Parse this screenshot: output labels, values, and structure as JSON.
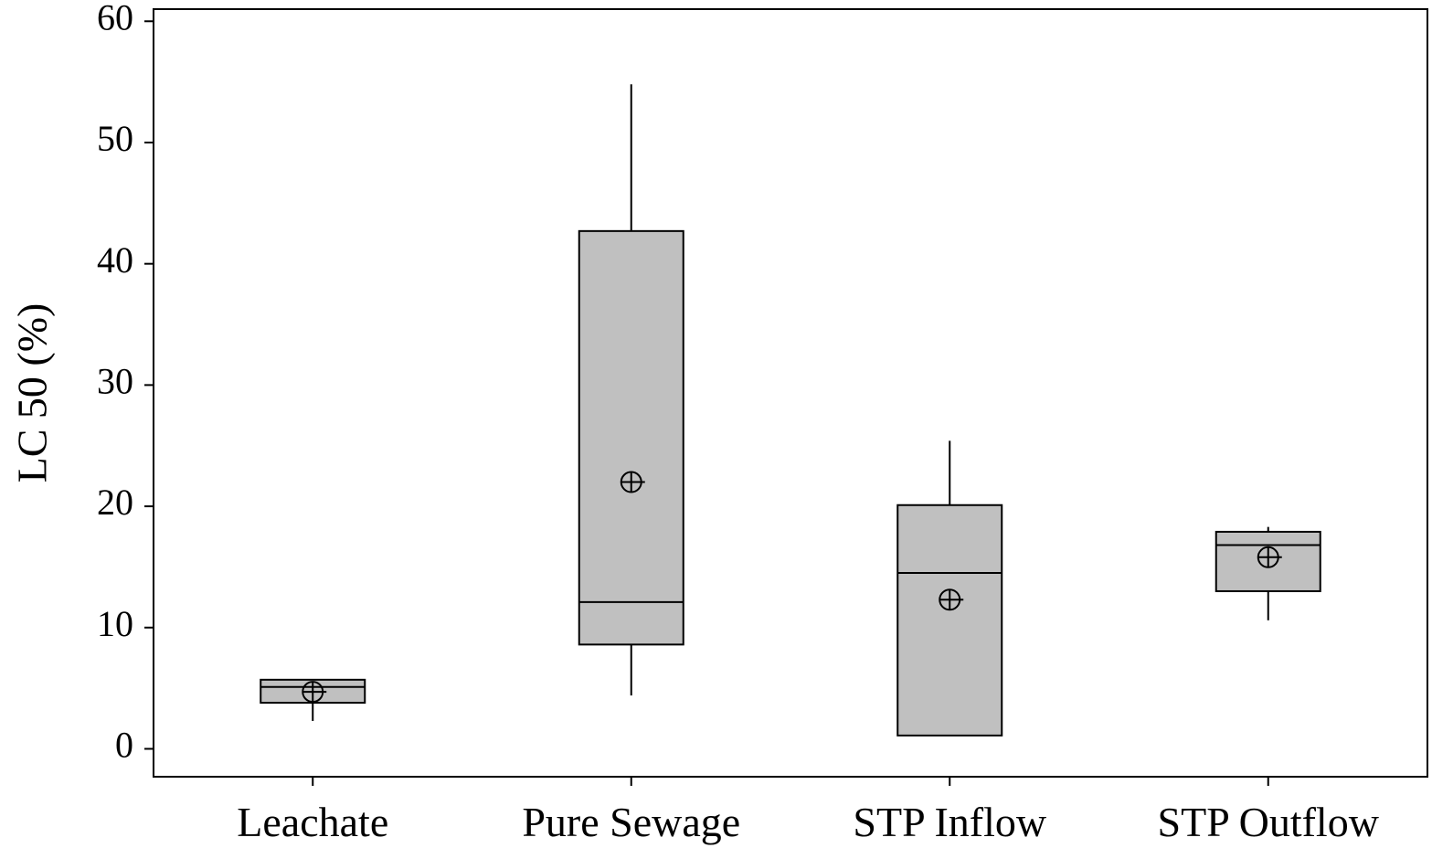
{
  "chart_data": {
    "type": "box",
    "y_label": "LC 50 (%)",
    "categories": [
      "Leachate",
      "Pure Sewage",
      "STP Inflow",
      "STP Outflow"
    ],
    "min": [
      2.3,
      4.4,
      1.1,
      10.6
    ],
    "q1": [
      3.8,
      8.6,
      1.1,
      13.0
    ],
    "median": [
      5.1,
      12.1,
      14.5,
      16.8
    ],
    "q3": [
      5.7,
      42.7,
      20.1,
      17.9
    ],
    "max": [
      5.7,
      54.8,
      25.4,
      18.3
    ],
    "mean": [
      4.7,
      22.0,
      12.3,
      15.8
    ],
    "color": "#c0c0c0",
    "ylim": [
      -2.3,
      61
    ],
    "yticks": [
      0,
      10,
      20,
      30,
      40,
      50,
      60
    ]
  }
}
